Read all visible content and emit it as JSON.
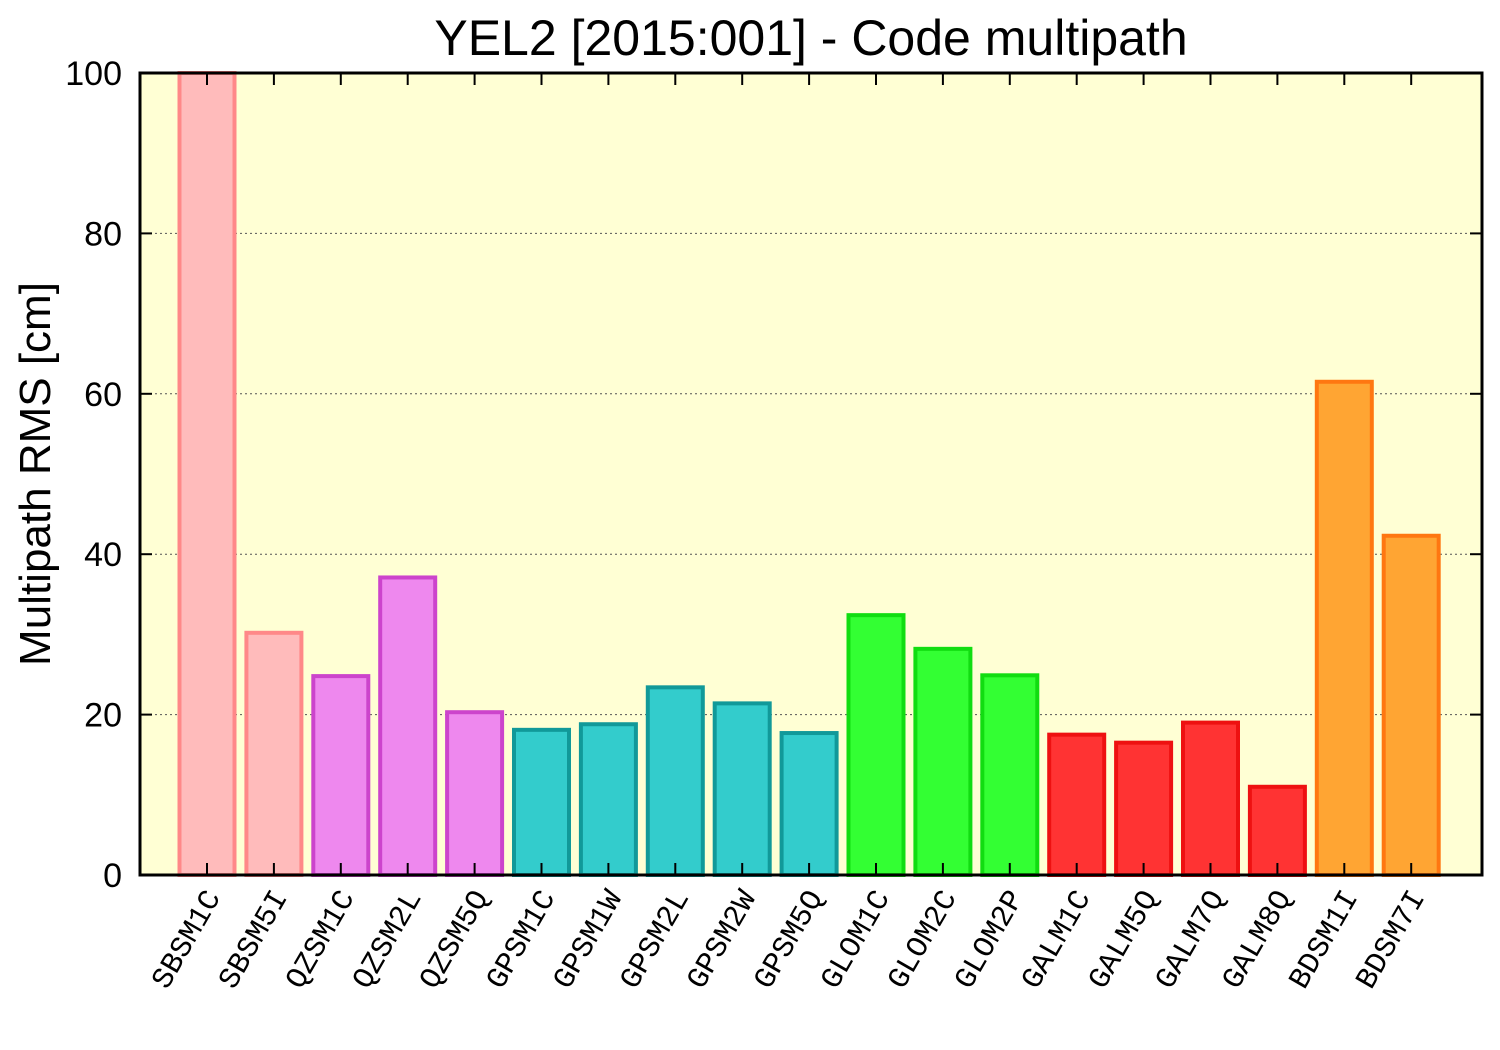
{
  "chart_data": {
    "type": "bar",
    "title": "YEL2 [2015:001] - Code multipath",
    "ylabel": "Multipath RMS [cm]",
    "xlabel": "",
    "ylim": [
      0,
      100
    ],
    "yticks": [
      0,
      20,
      40,
      60,
      80,
      100
    ],
    "grid": true,
    "background": "#ffffd4",
    "categories": [
      "SBSM1C",
      "SBSM5I",
      "QZSM1C",
      "QZSM2L",
      "QZSM5Q",
      "GPSM1C",
      "GPSM1W",
      "GPSM2L",
      "GPSM2W",
      "GPSM5Q",
      "GLOM1C",
      "GLOM2C",
      "GLOM2P",
      "GALM1C",
      "GALM5Q",
      "GALM7Q",
      "GALM8Q",
      "BDSM1I",
      "BDSM7I"
    ],
    "values": [
      100,
      30.2,
      24.8,
      37.1,
      20.3,
      18.1,
      18.8,
      23.4,
      21.4,
      17.7,
      32.4,
      28.2,
      24.9,
      17.5,
      16.5,
      19.0,
      11.0,
      61.5,
      42.3
    ],
    "systems": [
      "SBS",
      "SBS",
      "QZS",
      "QZS",
      "QZS",
      "GPS",
      "GPS",
      "GPS",
      "GPS",
      "GPS",
      "GLO",
      "GLO",
      "GLO",
      "GAL",
      "GAL",
      "GAL",
      "GAL",
      "BDS",
      "BDS"
    ],
    "system_colors": {
      "SBS": {
        "fill": "#ffbbbb",
        "stroke": "#ff8888"
      },
      "QZS": {
        "fill": "#ee88ee",
        "stroke": "#cc44cc"
      },
      "GPS": {
        "fill": "#33cccc",
        "stroke": "#119999"
      },
      "GLO": {
        "fill": "#33ff33",
        "stroke": "#11dd11"
      },
      "GAL": {
        "fill": "#ff3333",
        "stroke": "#ee1111"
      },
      "BDS": {
        "fill": "#ffa533",
        "stroke": "#ff7711"
      }
    }
  }
}
